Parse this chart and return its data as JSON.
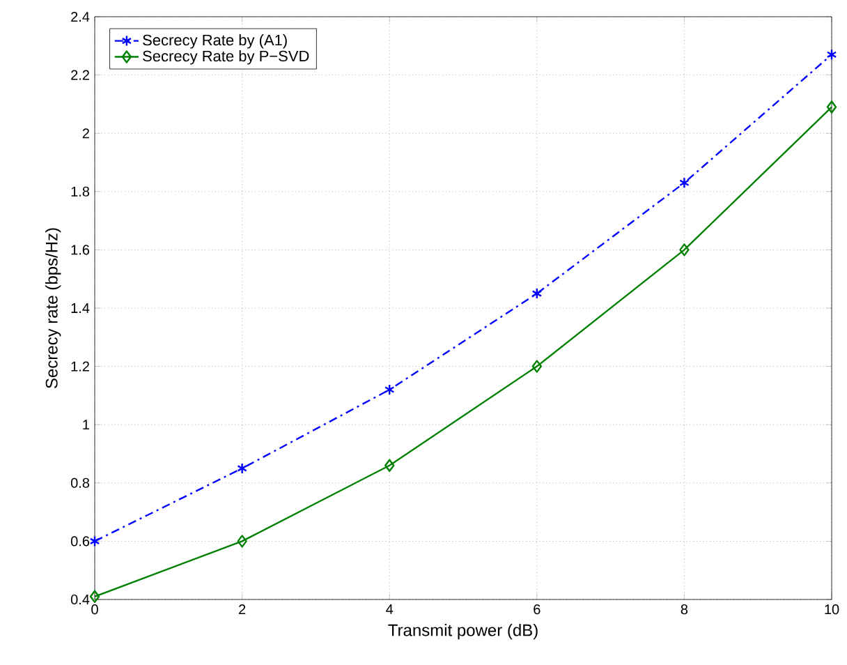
{
  "chart_data": {
    "type": "line",
    "xlabel": "Transmit power (dB)",
    "ylabel": "Secrecy rate (bps/Hz)",
    "x": [
      0,
      2,
      4,
      6,
      8,
      10
    ],
    "series": [
      {
        "name": "Secrecy Rate by (A1)",
        "color": "#0000ff",
        "marker": "cross",
        "line_style": "dashdot",
        "values": [
          0.6,
          0.85,
          1.12,
          1.45,
          1.83,
          2.27
        ]
      },
      {
        "name": "Secrecy Rate by P−SVD",
        "color": "#008000",
        "marker": "diamond",
        "line_style": "solid",
        "values": [
          0.41,
          0.6,
          0.86,
          1.2,
          1.6,
          2.09
        ]
      }
    ],
    "xlim": [
      0,
      10
    ],
    "xticks": [
      0,
      2,
      4,
      6,
      8,
      10
    ],
    "ylim": [
      0.4,
      2.4
    ],
    "yticks": [
      0.4,
      0.6,
      0.8,
      1,
      1.2,
      1.4,
      1.6,
      1.8,
      2,
      2.2,
      2.4
    ],
    "grid": true,
    "legend": "top left"
  }
}
